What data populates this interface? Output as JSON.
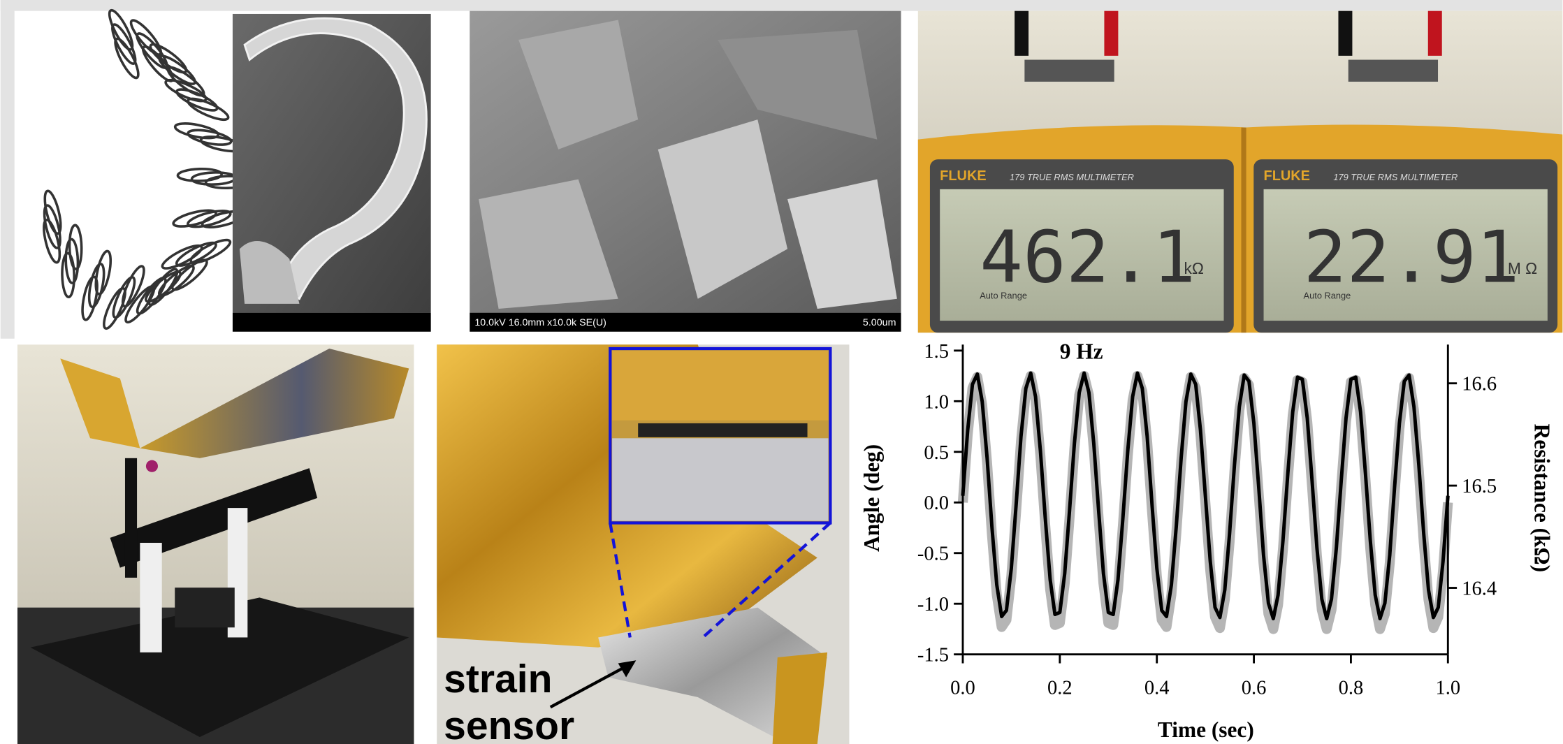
{
  "sem": {
    "info": "10.0kV 16.0mm x10.0k SE(U)",
    "scale": "5.00um"
  },
  "meters": [
    {
      "brand": "FLUKE",
      "model": "179 TRUE RMS MULTIMETER",
      "range": "Auto Range",
      "reading": "462.1",
      "unit": "kΩ"
    },
    {
      "brand": "FLUKE",
      "model": "179 TRUE RMS MULTIMETER",
      "range": "Auto Range",
      "reading": "22.91",
      "unit": "M Ω"
    }
  ],
  "label": {
    "line1": "strain",
    "line2": "sensor"
  },
  "chart_data": {
    "type": "line",
    "annotation": "9 Hz",
    "xlabel": "Time (sec)",
    "ylabel": "Angle (deg)",
    "y2label": "Resistance (kΩ)",
    "x": [
      0,
      0.01,
      0.02,
      0.03,
      0.04,
      0.05,
      0.06,
      0.07,
      0.08,
      0.09,
      0.1,
      0.11,
      0.12,
      0.13,
      0.14,
      0.15,
      0.16,
      0.17,
      0.18,
      0.19,
      0.2,
      0.21,
      0.22,
      0.23,
      0.24,
      0.25,
      0.26,
      0.27,
      0.28,
      0.29,
      0.3,
      0.31,
      0.32,
      0.33,
      0.34,
      0.35,
      0.36,
      0.37,
      0.38,
      0.39,
      0.4,
      0.41,
      0.42,
      0.43,
      0.44,
      0.45,
      0.46,
      0.47,
      0.48,
      0.49,
      0.5,
      0.51,
      0.52,
      0.53,
      0.54,
      0.55,
      0.56,
      0.57,
      0.58,
      0.59,
      0.6,
      0.61,
      0.62,
      0.63,
      0.64,
      0.65,
      0.66,
      0.67,
      0.68,
      0.69,
      0.7,
      0.71,
      0.72,
      0.73,
      0.74,
      0.75,
      0.76,
      0.77,
      0.78,
      0.79,
      0.8,
      0.81,
      0.82,
      0.83,
      0.84,
      0.85,
      0.86,
      0.87,
      0.88,
      0.89,
      0.9,
      0.91,
      0.92,
      0.93,
      0.94,
      0.95,
      0.96,
      0.97,
      0.98,
      0.99,
      1
    ],
    "series": [
      {
        "color": "#b5b5b5",
        "values": [
          0,
          0.67,
          1.13,
          1.24,
          0.96,
          0.39,
          -0.31,
          -0.91,
          -1.23,
          -1.16,
          -0.73,
          -0.08,
          0.6,
          1.1,
          1.25,
          1.01,
          0.46,
          -0.23,
          -0.86,
          -1.21,
          -1.19,
          -0.8,
          -0.16,
          0.53,
          1.06,
          1.25,
          1.06,
          0.53,
          -0.16,
          -0.8,
          -1.19,
          -1.21,
          -0.86,
          -0.23,
          0.46,
          1.01,
          1.25,
          1.1,
          0.6,
          -0.08,
          -0.73,
          -1.16,
          -1.23,
          -0.91,
          -0.31,
          0.39,
          0.96,
          1.24,
          1.13,
          0.67,
          0,
          -0.67,
          -1.13,
          -1.24,
          -0.96,
          -0.39,
          0.31,
          0.91,
          1.23,
          1.16,
          0.73,
          0.08,
          -0.6,
          -1.1,
          -1.25,
          -1.01,
          -0.46,
          0.23,
          0.86,
          1.21,
          1.19,
          0.8,
          0.16,
          -0.53,
          -1.06,
          -1.25,
          -1.06,
          -0.53,
          0.16,
          0.8,
          1.19,
          1.21,
          0.86,
          0.23,
          -0.46,
          -1.01,
          -1.25,
          -1.1,
          -0.6,
          0.08,
          0.73,
          1.16,
          1.23,
          0.91,
          0.31,
          -0.39,
          -0.96,
          -1.24,
          -1.13,
          -0.67,
          0
        ]
      },
      {
        "color": "#000000",
        "axis": "y2",
        "values": [
          16.49,
          16.554,
          16.599,
          16.609,
          16.582,
          16.527,
          16.46,
          16.403,
          16.372,
          16.378,
          16.419,
          16.482,
          16.548,
          16.595,
          16.61,
          16.587,
          16.534,
          16.468,
          16.408,
          16.374,
          16.376,
          16.414,
          16.475,
          16.541,
          16.591,
          16.61,
          16.591,
          16.541,
          16.475,
          16.414,
          16.376,
          16.374,
          16.408,
          16.468,
          16.534,
          16.587,
          16.61,
          16.595,
          16.548,
          16.482,
          16.419,
          16.378,
          16.372,
          16.403,
          16.46,
          16.527,
          16.582,
          16.609,
          16.599,
          16.554,
          16.49,
          16.426,
          16.381,
          16.371,
          16.398,
          16.453,
          16.52,
          16.577,
          16.608,
          16.602,
          16.561,
          16.498,
          16.432,
          16.385,
          16.37,
          16.393,
          16.446,
          16.512,
          16.572,
          16.606,
          16.604,
          16.566,
          16.505,
          16.439,
          16.389,
          16.37,
          16.389,
          16.439,
          16.505,
          16.566,
          16.604,
          16.606,
          16.572,
          16.512,
          16.446,
          16.393,
          16.37,
          16.385,
          16.432,
          16.498,
          16.561,
          16.602,
          16.608,
          16.577,
          16.52,
          16.453,
          16.398,
          16.371,
          16.381,
          16.426,
          16.49
        ]
      }
    ],
    "xlim": [
      0,
      1
    ],
    "xticks": [
      {
        "value": 0,
        "label": "0.0"
      },
      0.2,
      0.4,
      0.6,
      0.8,
      {
        "value": 1,
        "label": "1.0"
      }
    ],
    "ylim": [
      -1.5,
      1.5
    ],
    "yticks": [
      -1.5,
      {
        "value": -1,
        "label": "-1.0"
      },
      -0.5,
      {
        "value": 0,
        "label": "0.0"
      },
      0.5,
      {
        "value": 1,
        "label": "1.0"
      },
      1.5
    ],
    "y2lim": [
      16.335,
      16.632
    ],
    "y2ticks": [
      16.4,
      16.5,
      16.6
    ]
  }
}
